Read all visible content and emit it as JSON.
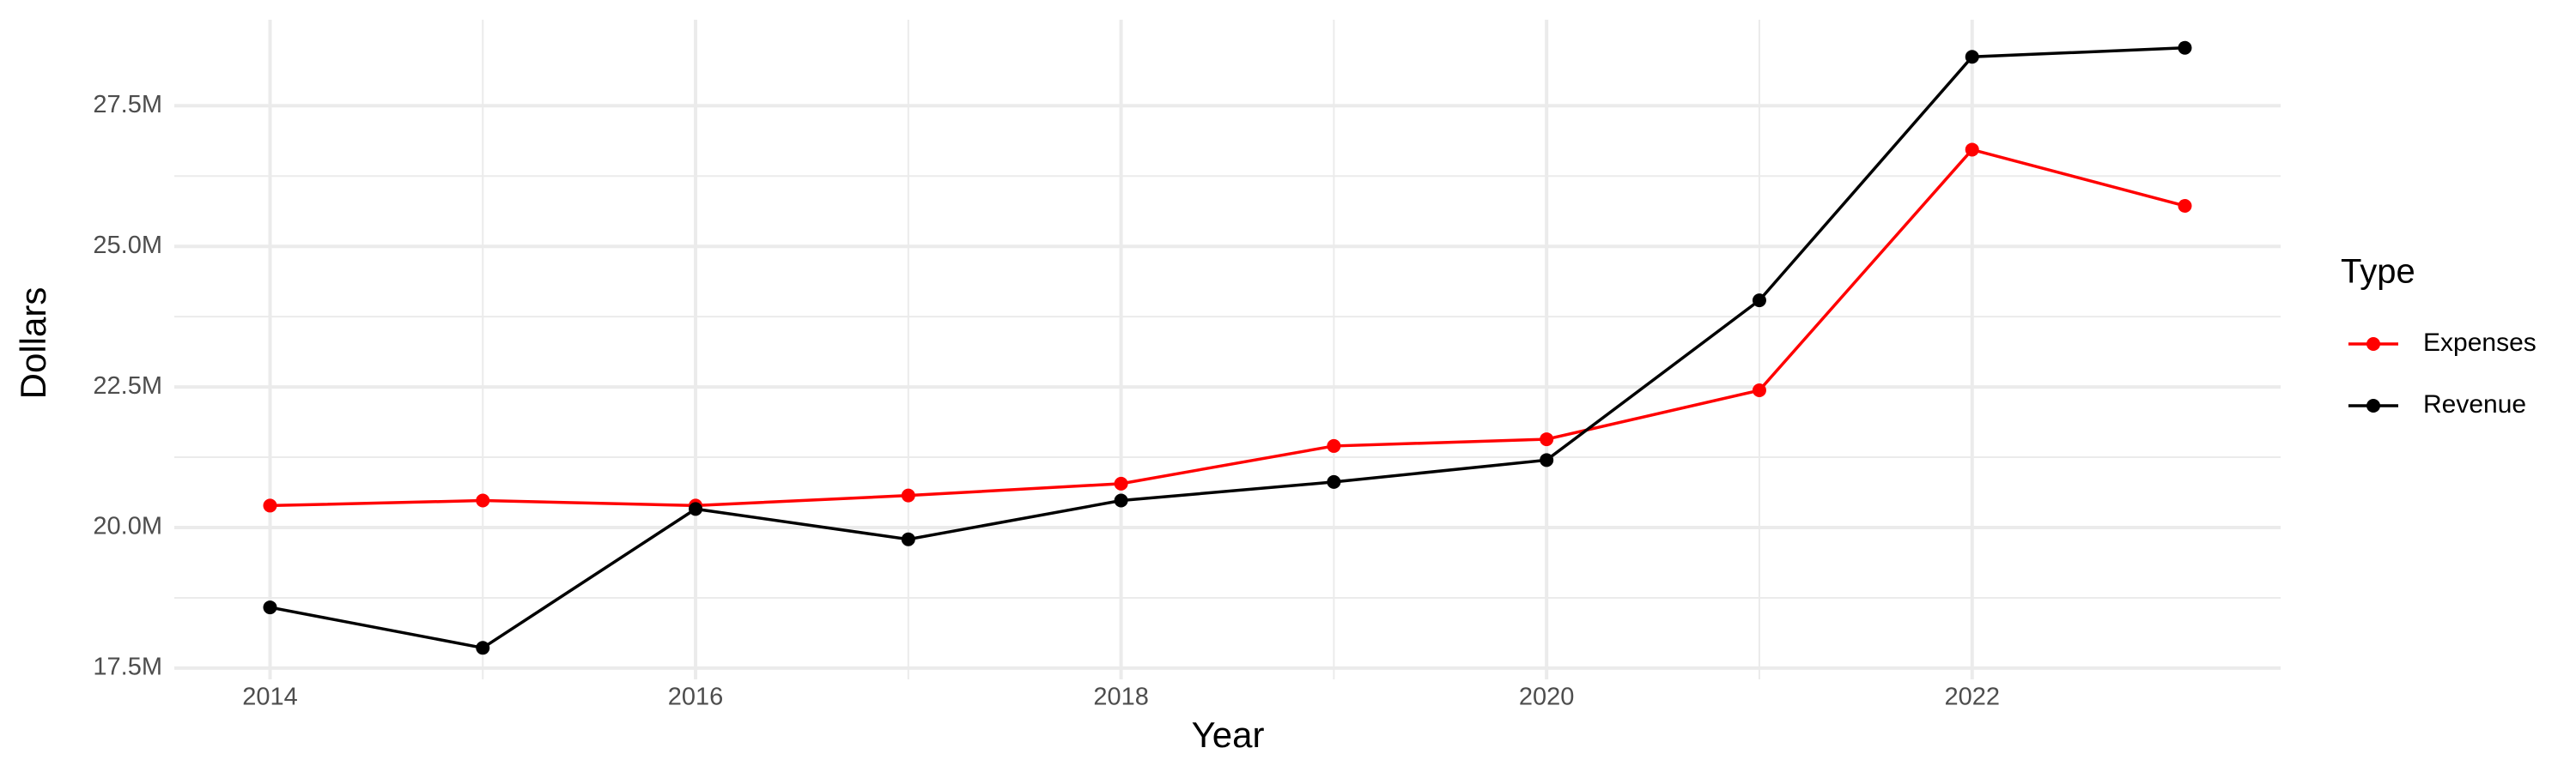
{
  "chart_data": {
    "type": "line",
    "x_label": "Year",
    "y_label": "Dollars",
    "legend_title": "Type",
    "x": [
      2014,
      2015,
      2016,
      2017,
      2018,
      2019,
      2020,
      2021,
      2022,
      2023
    ],
    "series": [
      {
        "name": "Expenses",
        "color": "#ff0000",
        "values": [
          20390000,
          20480000,
          20390000,
          20570000,
          20780000,
          21450000,
          21570000,
          22440000,
          26720000,
          25720000
        ]
      },
      {
        "name": "Revenue",
        "color": "#000000",
        "values": [
          18580000,
          17860000,
          20330000,
          19790000,
          20480000,
          20810000,
          21200000,
          24040000,
          28370000,
          28530000
        ]
      }
    ],
    "xlim": [
      2013.55,
      2023.45
    ],
    "xticks": [
      2014,
      2016,
      2018,
      2020,
      2022
    ],
    "ylim": [
      17300000,
      29030000
    ],
    "yticks": [
      {
        "value": 17500000,
        "label": "17.5M"
      },
      {
        "value": 20000000,
        "label": "20.0M"
      },
      {
        "value": 22500000,
        "label": "22.5M"
      },
      {
        "value": 25000000,
        "label": "25.0M"
      },
      {
        "value": 27500000,
        "label": "27.5M"
      }
    ],
    "grid": true,
    "legend": "right"
  }
}
